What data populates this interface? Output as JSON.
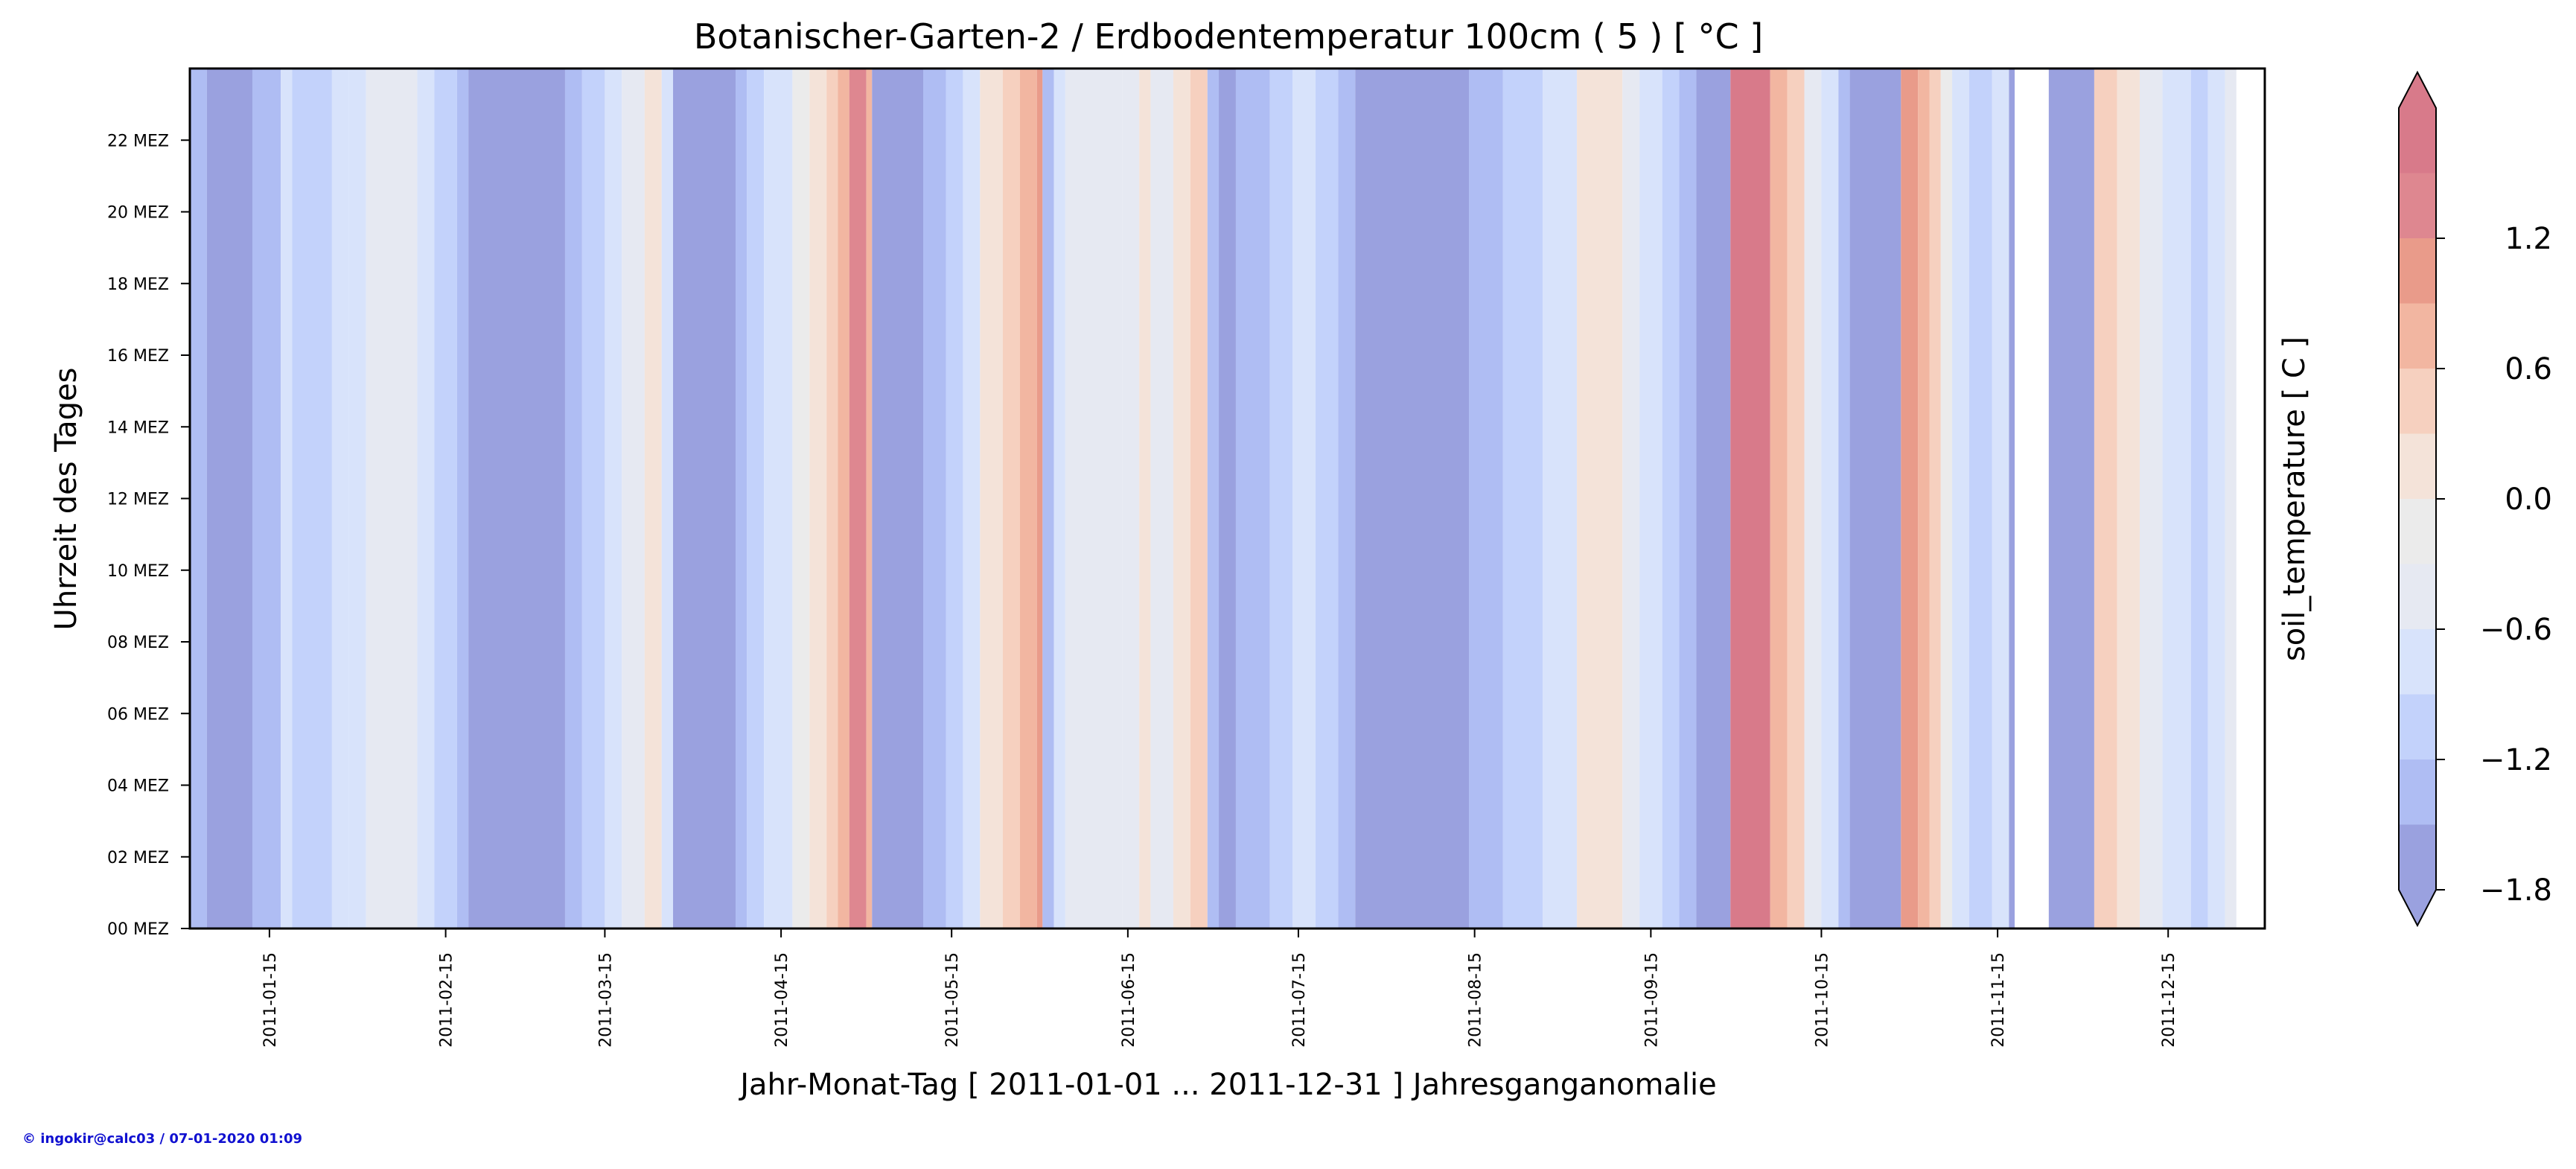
{
  "footer": "© ingokir@calc03 / 07-01-2020 01:09",
  "chart_data": {
    "type": "heatmap",
    "title": "Botanischer-Garten-2 / Erdbodentemperatur 100cm ( 5 ) [ °C ]",
    "xlabel": "Jahr-Monat-Tag [ 2011-01-01 ... 2011-12-31 ] Jahresganganomalie",
    "ylabel": "Uhrzeit des Tages",
    "colorbar_label": "soil_temperature [ C ]",
    "x_range": [
      "2011-01-01",
      "2011-12-31"
    ],
    "y_range": [
      0,
      24
    ],
    "x_ticks": [
      "2011-01-15",
      "2011-02-15",
      "2011-03-15",
      "2011-04-15",
      "2011-05-15",
      "2011-06-15",
      "2011-07-15",
      "2011-08-15",
      "2011-09-15",
      "2011-10-15",
      "2011-11-15",
      "2011-12-15"
    ],
    "y_ticks": [
      {
        "value": 0,
        "label": "00 MEZ"
      },
      {
        "value": 2,
        "label": "02 MEZ"
      },
      {
        "value": 4,
        "label": "04 MEZ"
      },
      {
        "value": 6,
        "label": "06 MEZ"
      },
      {
        "value": 8,
        "label": "08 MEZ"
      },
      {
        "value": 10,
        "label": "10 MEZ"
      },
      {
        "value": 12,
        "label": "12 MEZ"
      },
      {
        "value": 14,
        "label": "14 MEZ"
      },
      {
        "value": 16,
        "label": "16 MEZ"
      },
      {
        "value": 18,
        "label": "18 MEZ"
      },
      {
        "value": 20,
        "label": "20 MEZ"
      },
      {
        "value": 22,
        "label": "22 MEZ"
      }
    ],
    "colorbar": {
      "levels": [
        -1.8,
        -1.5,
        -1.2,
        -0.9,
        -0.6,
        -0.3,
        0.0,
        0.3,
        0.6,
        0.9,
        1.2,
        1.5
      ],
      "colors": [
        "#9aa1df",
        "#afbdf3",
        "#c3d2fb",
        "#d8e3fb",
        "#e6e9f2",
        "#ebebeb",
        "#f4e3d9",
        "#f6d0bf",
        "#f2b6a1",
        "#e99b8a",
        "#de8790",
        "#d87a8a"
      ],
      "ticks": [
        -1.8,
        -1.2,
        -0.6,
        0.0,
        0.6,
        1.2
      ],
      "tick_labels": [
        "−1.8",
        "−1.2",
        "−0.6",
        "0.0",
        "0.6",
        "1.2"
      ],
      "extend": "both",
      "lower_extend_color": "#9aa1df",
      "upper_extend_color": "#d87a8a"
    },
    "missing_color": "#ffffff",
    "daily_anomaly_segments": [
      {
        "start": "2011-01-01",
        "end": "2011-01-04",
        "value": -1.3
      },
      {
        "start": "2011-01-04",
        "end": "2011-01-12",
        "value": -1.7
      },
      {
        "start": "2011-01-12",
        "end": "2011-01-17",
        "value": -1.3
      },
      {
        "start": "2011-01-17",
        "end": "2011-01-19",
        "value": -0.8
      },
      {
        "start": "2011-01-19",
        "end": "2011-01-26",
        "value": -1.2
      },
      {
        "start": "2011-01-26",
        "end": "2011-01-29",
        "value": -0.9
      },
      {
        "start": "2011-01-29",
        "end": "2011-02-01",
        "value": -0.7
      },
      {
        "start": "2011-02-01",
        "end": "2011-02-10",
        "value": -0.4
      },
      {
        "start": "2011-02-10",
        "end": "2011-02-13",
        "value": -0.7
      },
      {
        "start": "2011-02-13",
        "end": "2011-02-17",
        "value": -1.0
      },
      {
        "start": "2011-02-17",
        "end": "2011-02-19",
        "value": -1.3
      },
      {
        "start": "2011-02-19",
        "end": "2011-03-08",
        "value": -1.7
      },
      {
        "start": "2011-03-08",
        "end": "2011-03-11",
        "value": -1.3
      },
      {
        "start": "2011-03-11",
        "end": "2011-03-15",
        "value": -1.0
      },
      {
        "start": "2011-03-15",
        "end": "2011-03-18",
        "value": -0.7
      },
      {
        "start": "2011-03-18",
        "end": "2011-03-22",
        "value": -0.4
      },
      {
        "start": "2011-03-22",
        "end": "2011-03-25",
        "value": 0.1
      },
      {
        "start": "2011-03-25",
        "end": "2011-03-27",
        "value": -0.7
      },
      {
        "start": "2011-03-27",
        "end": "2011-04-07",
        "value": -1.7
      },
      {
        "start": "2011-04-07",
        "end": "2011-04-09",
        "value": -1.3
      },
      {
        "start": "2011-04-09",
        "end": "2011-04-12",
        "value": -1.0
      },
      {
        "start": "2011-04-12",
        "end": "2011-04-17",
        "value": -0.7
      },
      {
        "start": "2011-04-17",
        "end": "2011-04-20",
        "value": -0.3
      },
      {
        "start": "2011-04-20",
        "end": "2011-04-23",
        "value": 0.1
      },
      {
        "start": "2011-04-23",
        "end": "2011-04-25",
        "value": 0.4
      },
      {
        "start": "2011-04-25",
        "end": "2011-04-27",
        "value": 0.8
      },
      {
        "start": "2011-04-27",
        "end": "2011-04-30",
        "value": 1.3
      },
      {
        "start": "2011-04-30",
        "end": "2011-05-01",
        "value": 0.7
      },
      {
        "start": "2011-05-01",
        "end": "2011-05-10",
        "value": -1.7
      },
      {
        "start": "2011-05-10",
        "end": "2011-05-14",
        "value": -1.3
      },
      {
        "start": "2011-05-14",
        "end": "2011-05-17",
        "value": -1.0
      },
      {
        "start": "2011-05-17",
        "end": "2011-05-20",
        "value": -0.7
      },
      {
        "start": "2011-05-20",
        "end": "2011-05-24",
        "value": 0.1
      },
      {
        "start": "2011-05-24",
        "end": "2011-05-27",
        "value": 0.4
      },
      {
        "start": "2011-05-27",
        "end": "2011-05-30",
        "value": 0.7
      },
      {
        "start": "2011-05-30",
        "end": "2011-05-31",
        "value": 1.1
      },
      {
        "start": "2011-05-31",
        "end": "2011-06-02",
        "value": -1.3
      },
      {
        "start": "2011-06-02",
        "end": "2011-06-04",
        "value": -0.7
      },
      {
        "start": "2011-06-04",
        "end": "2011-06-14",
        "value": -0.4
      },
      {
        "start": "2011-06-14",
        "end": "2011-06-17",
        "value": -0.6
      },
      {
        "start": "2011-06-17",
        "end": "2011-06-19",
        "value": 0.1
      },
      {
        "start": "2011-06-19",
        "end": "2011-06-23",
        "value": -0.4
      },
      {
        "start": "2011-06-23",
        "end": "2011-06-26",
        "value": 0.1
      },
      {
        "start": "2011-06-26",
        "end": "2011-06-29",
        "value": 0.4
      },
      {
        "start": "2011-06-29",
        "end": "2011-07-01",
        "value": -1.3
      },
      {
        "start": "2011-07-01",
        "end": "2011-07-04",
        "value": -1.7
      },
      {
        "start": "2011-07-04",
        "end": "2011-07-10",
        "value": -1.3
      },
      {
        "start": "2011-07-10",
        "end": "2011-07-14",
        "value": -1.0
      },
      {
        "start": "2011-07-14",
        "end": "2011-07-18",
        "value": -0.8
      },
      {
        "start": "2011-07-18",
        "end": "2011-07-22",
        "value": -1.0
      },
      {
        "start": "2011-07-22",
        "end": "2011-07-25",
        "value": -1.3
      },
      {
        "start": "2011-07-25",
        "end": "2011-08-14",
        "value": -1.7
      },
      {
        "start": "2011-08-14",
        "end": "2011-08-20",
        "value": -1.3
      },
      {
        "start": "2011-08-20",
        "end": "2011-08-27",
        "value": -1.0
      },
      {
        "start": "2011-08-27",
        "end": "2011-09-02",
        "value": -0.7
      },
      {
        "start": "2011-09-02",
        "end": "2011-09-10",
        "value": 0.1
      },
      {
        "start": "2011-09-10",
        "end": "2011-09-13",
        "value": -0.4
      },
      {
        "start": "2011-09-13",
        "end": "2011-09-17",
        "value": -0.7
      },
      {
        "start": "2011-09-17",
        "end": "2011-09-20",
        "value": -1.0
      },
      {
        "start": "2011-09-20",
        "end": "2011-09-23",
        "value": -1.3
      },
      {
        "start": "2011-09-23",
        "end": "2011-09-29",
        "value": -1.7
      },
      {
        "start": "2011-09-29",
        "end": "2011-10-06",
        "value": 1.6
      },
      {
        "start": "2011-10-06",
        "end": "2011-10-09",
        "value": 0.7
      },
      {
        "start": "2011-10-09",
        "end": "2011-10-12",
        "value": 0.3
      },
      {
        "start": "2011-10-12",
        "end": "2011-10-15",
        "value": -0.4
      },
      {
        "start": "2011-10-15",
        "end": "2011-10-18",
        "value": -0.7
      },
      {
        "start": "2011-10-18",
        "end": "2011-10-20",
        "value": -1.3
      },
      {
        "start": "2011-10-20",
        "end": "2011-10-29",
        "value": -1.7
      },
      {
        "start": "2011-10-29",
        "end": "2011-11-01",
        "value": 1.0
      },
      {
        "start": "2011-11-01",
        "end": "2011-11-03",
        "value": 0.7
      },
      {
        "start": "2011-11-03",
        "end": "2011-11-05",
        "value": 0.4
      },
      {
        "start": "2011-11-05",
        "end": "2011-11-07",
        "value": -0.3
      },
      {
        "start": "2011-11-07",
        "end": "2011-11-10",
        "value": -0.7
      },
      {
        "start": "2011-11-10",
        "end": "2011-11-14",
        "value": -1.0
      },
      {
        "start": "2011-11-14",
        "end": "2011-11-17",
        "value": -0.7
      },
      {
        "start": "2011-11-17",
        "end": "2011-11-18",
        "value": -1.7
      },
      {
        "start": "2011-11-24",
        "end": "2011-12-02",
        "value": -1.7
      },
      {
        "start": "2011-12-02",
        "end": "2011-12-06",
        "value": 0.4
      },
      {
        "start": "2011-12-06",
        "end": "2011-12-10",
        "value": 0.1
      },
      {
        "start": "2011-12-10",
        "end": "2011-12-14",
        "value": -0.4
      },
      {
        "start": "2011-12-14",
        "end": "2011-12-19",
        "value": -0.7
      },
      {
        "start": "2011-12-19",
        "end": "2011-12-22",
        "value": -1.0
      },
      {
        "start": "2011-12-22",
        "end": "2011-12-25",
        "value": -0.7
      },
      {
        "start": "2011-12-25",
        "end": "2011-12-27",
        "value": -0.4
      }
    ]
  }
}
